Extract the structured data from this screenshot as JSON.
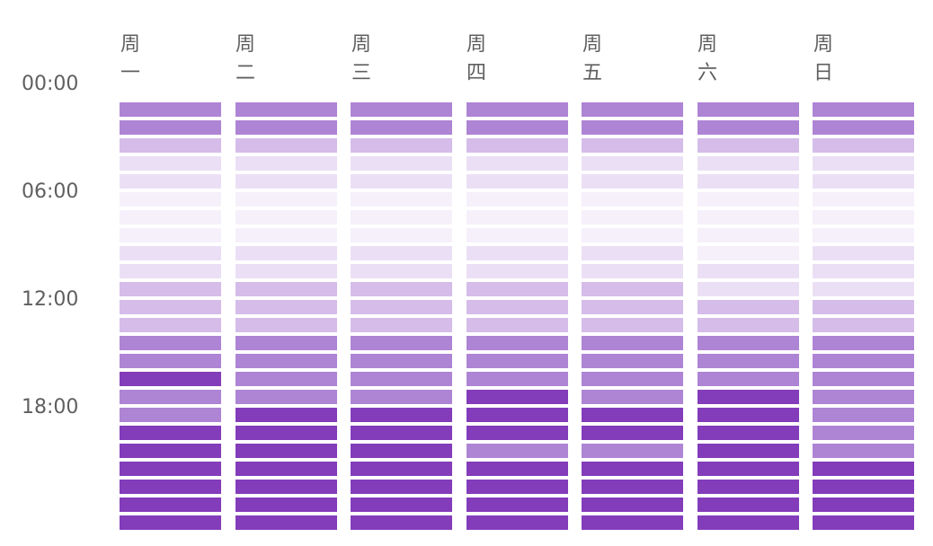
{
  "chart_data": {
    "type": "heatmap",
    "days": [
      "周\n一",
      "周\n二",
      "周\n三",
      "周\n四",
      "周\n五",
      "周\n六",
      "周\n日"
    ],
    "time_labels": [
      "00:00",
      "06:00",
      "12:00",
      "18:00"
    ],
    "slots_per_day": 24,
    "scale": {
      "min": 0,
      "max": 5
    },
    "colors": [
      "#fdfbfe",
      "#f6f0fb",
      "#ebdff5",
      "#d5bce9",
      "#ae84d5",
      "#833cba"
    ],
    "values": [
      [
        4,
        4,
        3,
        2,
        2,
        1,
        1,
        1,
        2,
        2,
        3,
        3,
        3,
        4,
        4,
        5,
        4,
        4,
        5,
        5,
        5,
        5,
        5,
        5
      ],
      [
        4,
        4,
        3,
        2,
        2,
        1,
        1,
        1,
        2,
        2,
        3,
        3,
        3,
        4,
        4,
        4,
        4,
        5,
        5,
        5,
        5,
        5,
        5,
        5
      ],
      [
        4,
        4,
        3,
        2,
        2,
        1,
        1,
        1,
        2,
        2,
        3,
        3,
        3,
        4,
        4,
        4,
        4,
        5,
        5,
        5,
        5,
        5,
        5,
        5
      ],
      [
        4,
        4,
        3,
        2,
        2,
        1,
        1,
        1,
        2,
        2,
        3,
        3,
        3,
        4,
        4,
        4,
        5,
        5,
        5,
        4,
        5,
        5,
        5,
        5
      ],
      [
        4,
        4,
        3,
        2,
        2,
        1,
        1,
        1,
        2,
        2,
        3,
        3,
        3,
        4,
        4,
        4,
        4,
        5,
        5,
        4,
        5,
        5,
        5,
        5
      ],
      [
        4,
        4,
        3,
        2,
        2,
        1,
        1,
        1,
        1,
        2,
        2,
        3,
        3,
        4,
        4,
        4,
        5,
        5,
        5,
        5,
        5,
        5,
        5,
        5
      ],
      [
        4,
        4,
        3,
        2,
        2,
        1,
        1,
        1,
        2,
        2,
        2,
        3,
        3,
        4,
        4,
        4,
        4,
        4,
        4,
        4,
        5,
        5,
        5,
        5
      ]
    ]
  }
}
